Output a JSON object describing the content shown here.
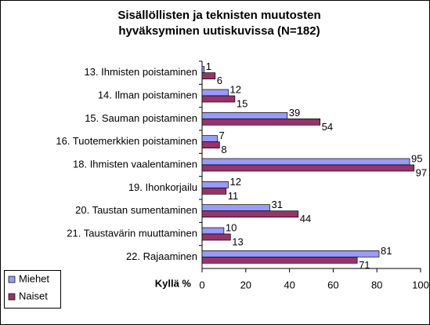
{
  "chart_data": {
    "type": "hbar",
    "title": [
      "Sisällöllisten ja teknisten muutosten",
      "hyväksyminen uutiskuvissa (N=182)"
    ],
    "x_label": "Kyllä %",
    "categories": [
      "13. Ihmisten poistaminen",
      "14. Ilman poistaminen",
      "15. Sauman poistaminen",
      "16. Tuotemerkkien poistaminen",
      "18. Ihmisten vaalentaminen",
      "19. Ihonkorjailu",
      "20. Taustan sumentaminen",
      "21. Taustavärin muuttaminen",
      "22. Rajaaminen"
    ],
    "series": [
      {
        "name": "Miehet",
        "color": "#9999ff",
        "values": [
          1,
          12,
          39,
          7,
          95,
          12,
          31,
          10,
          81
        ]
      },
      {
        "name": "Naiset",
        "color": "#993366",
        "values": [
          6,
          15,
          54,
          8,
          97,
          11,
          44,
          13,
          71
        ]
      }
    ],
    "xlim": [
      0,
      100
    ],
    "xticks": [
      0,
      20,
      40,
      60,
      80,
      100
    ],
    "legend": "bottom-left"
  }
}
